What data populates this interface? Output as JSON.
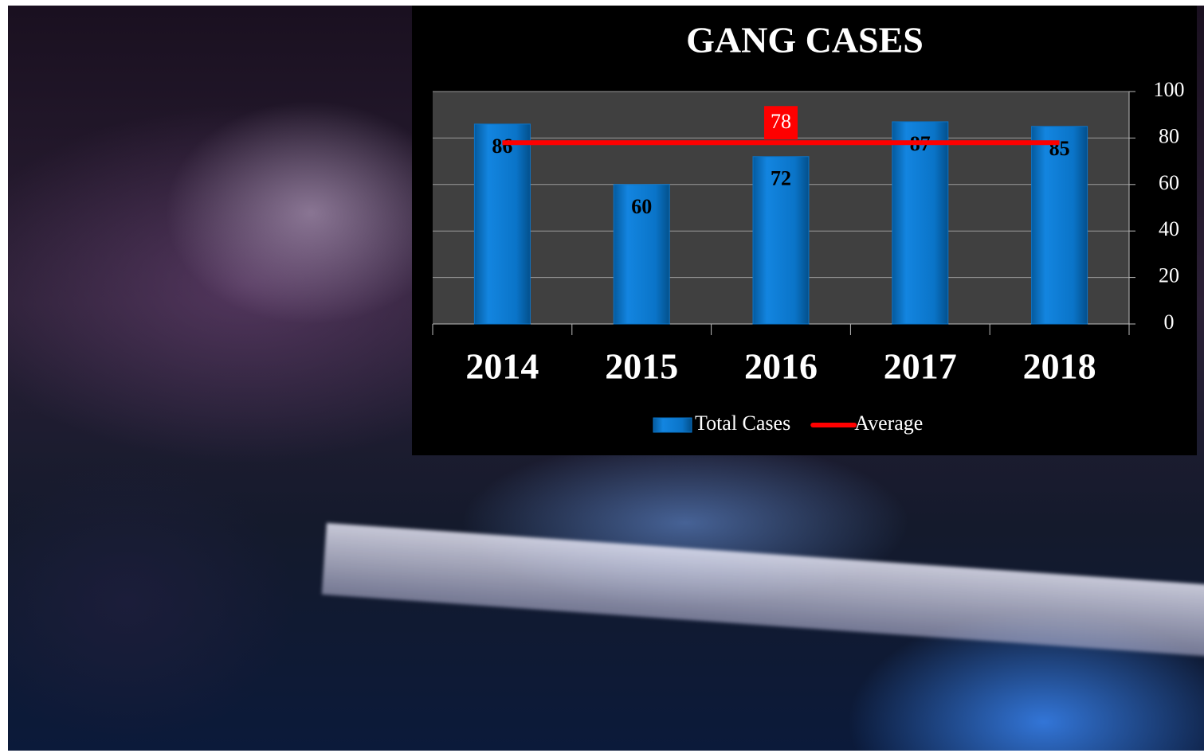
{
  "chart_data": {
    "type": "bar",
    "title": "GANG CASES",
    "categories": [
      "2014",
      "2015",
      "2016",
      "2017",
      "2018"
    ],
    "series": [
      {
        "name": "Total Cases",
        "type": "bar",
        "color": "#0a74c8",
        "values": [
          86,
          60,
          72,
          87,
          85
        ]
      },
      {
        "name": "Average",
        "type": "line",
        "color": "#ff0000",
        "values": [
          78,
          78,
          78,
          78,
          78
        ],
        "value_labels": [
          null,
          null,
          "78",
          null,
          null
        ]
      }
    ],
    "ylim": [
      0,
      100
    ],
    "yticks": [
      0,
      20,
      40,
      60,
      80,
      100
    ],
    "grid": true,
    "y_axis_side": "right",
    "legend": "bottom"
  }
}
